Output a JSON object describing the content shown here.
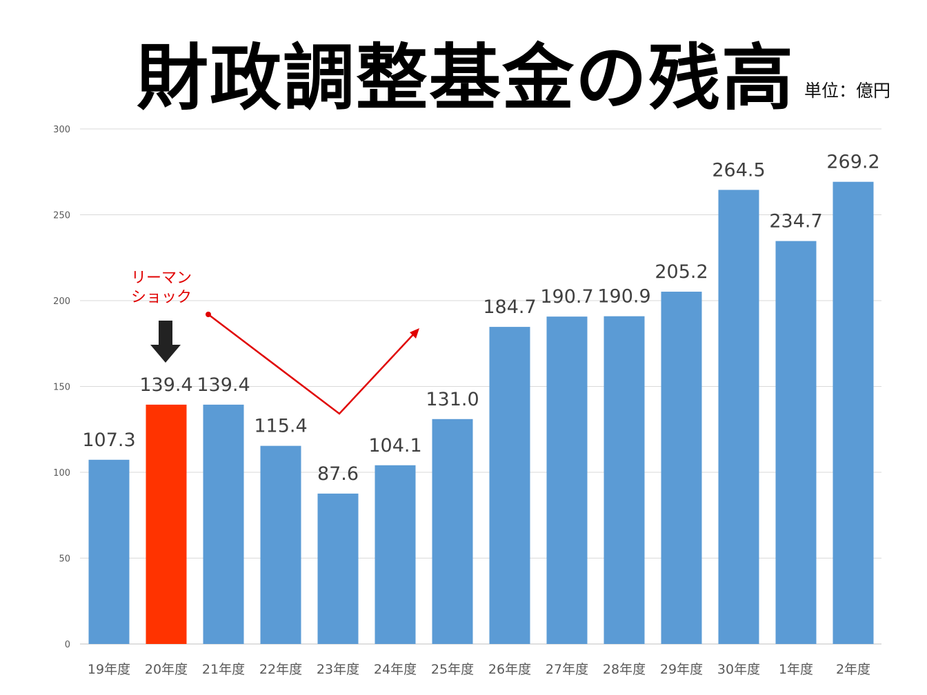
{
  "chart_data": {
    "type": "bar",
    "title": "財政調整基金の残高",
    "unit_label": "単位：億円",
    "xlabel": "",
    "ylabel": "",
    "ylim": [
      0,
      300
    ],
    "yticks": [
      0,
      50,
      100,
      150,
      200,
      250,
      300
    ],
    "grid": true,
    "categories": [
      "19年度",
      "20年度",
      "21年度",
      "22年度",
      "23年度",
      "24年度",
      "25年度",
      "26年度",
      "27年度",
      "28年度",
      "29年度",
      "30年度",
      "1年度",
      "2年度"
    ],
    "values": [
      107.3,
      139.4,
      139.4,
      115.4,
      87.6,
      104.1,
      131.0,
      184.7,
      190.7,
      190.9,
      205.2,
      264.5,
      234.7,
      269.2
    ],
    "value_labels": [
      "107.3",
      "139.4",
      "139.4",
      "115.4",
      "87.6",
      "104.1",
      "131.0",
      "184.7",
      "190.7",
      "190.9",
      "205.2",
      "264.5",
      "234.7",
      "269.2"
    ],
    "highlight_index": 1,
    "colors": {
      "bar": "#5B9BD5",
      "highlight": "#FF3300",
      "annotation": "#E00000"
    },
    "annotation": {
      "lines": [
        "リーマン",
        "ショック"
      ],
      "target_category": "20年度"
    }
  }
}
